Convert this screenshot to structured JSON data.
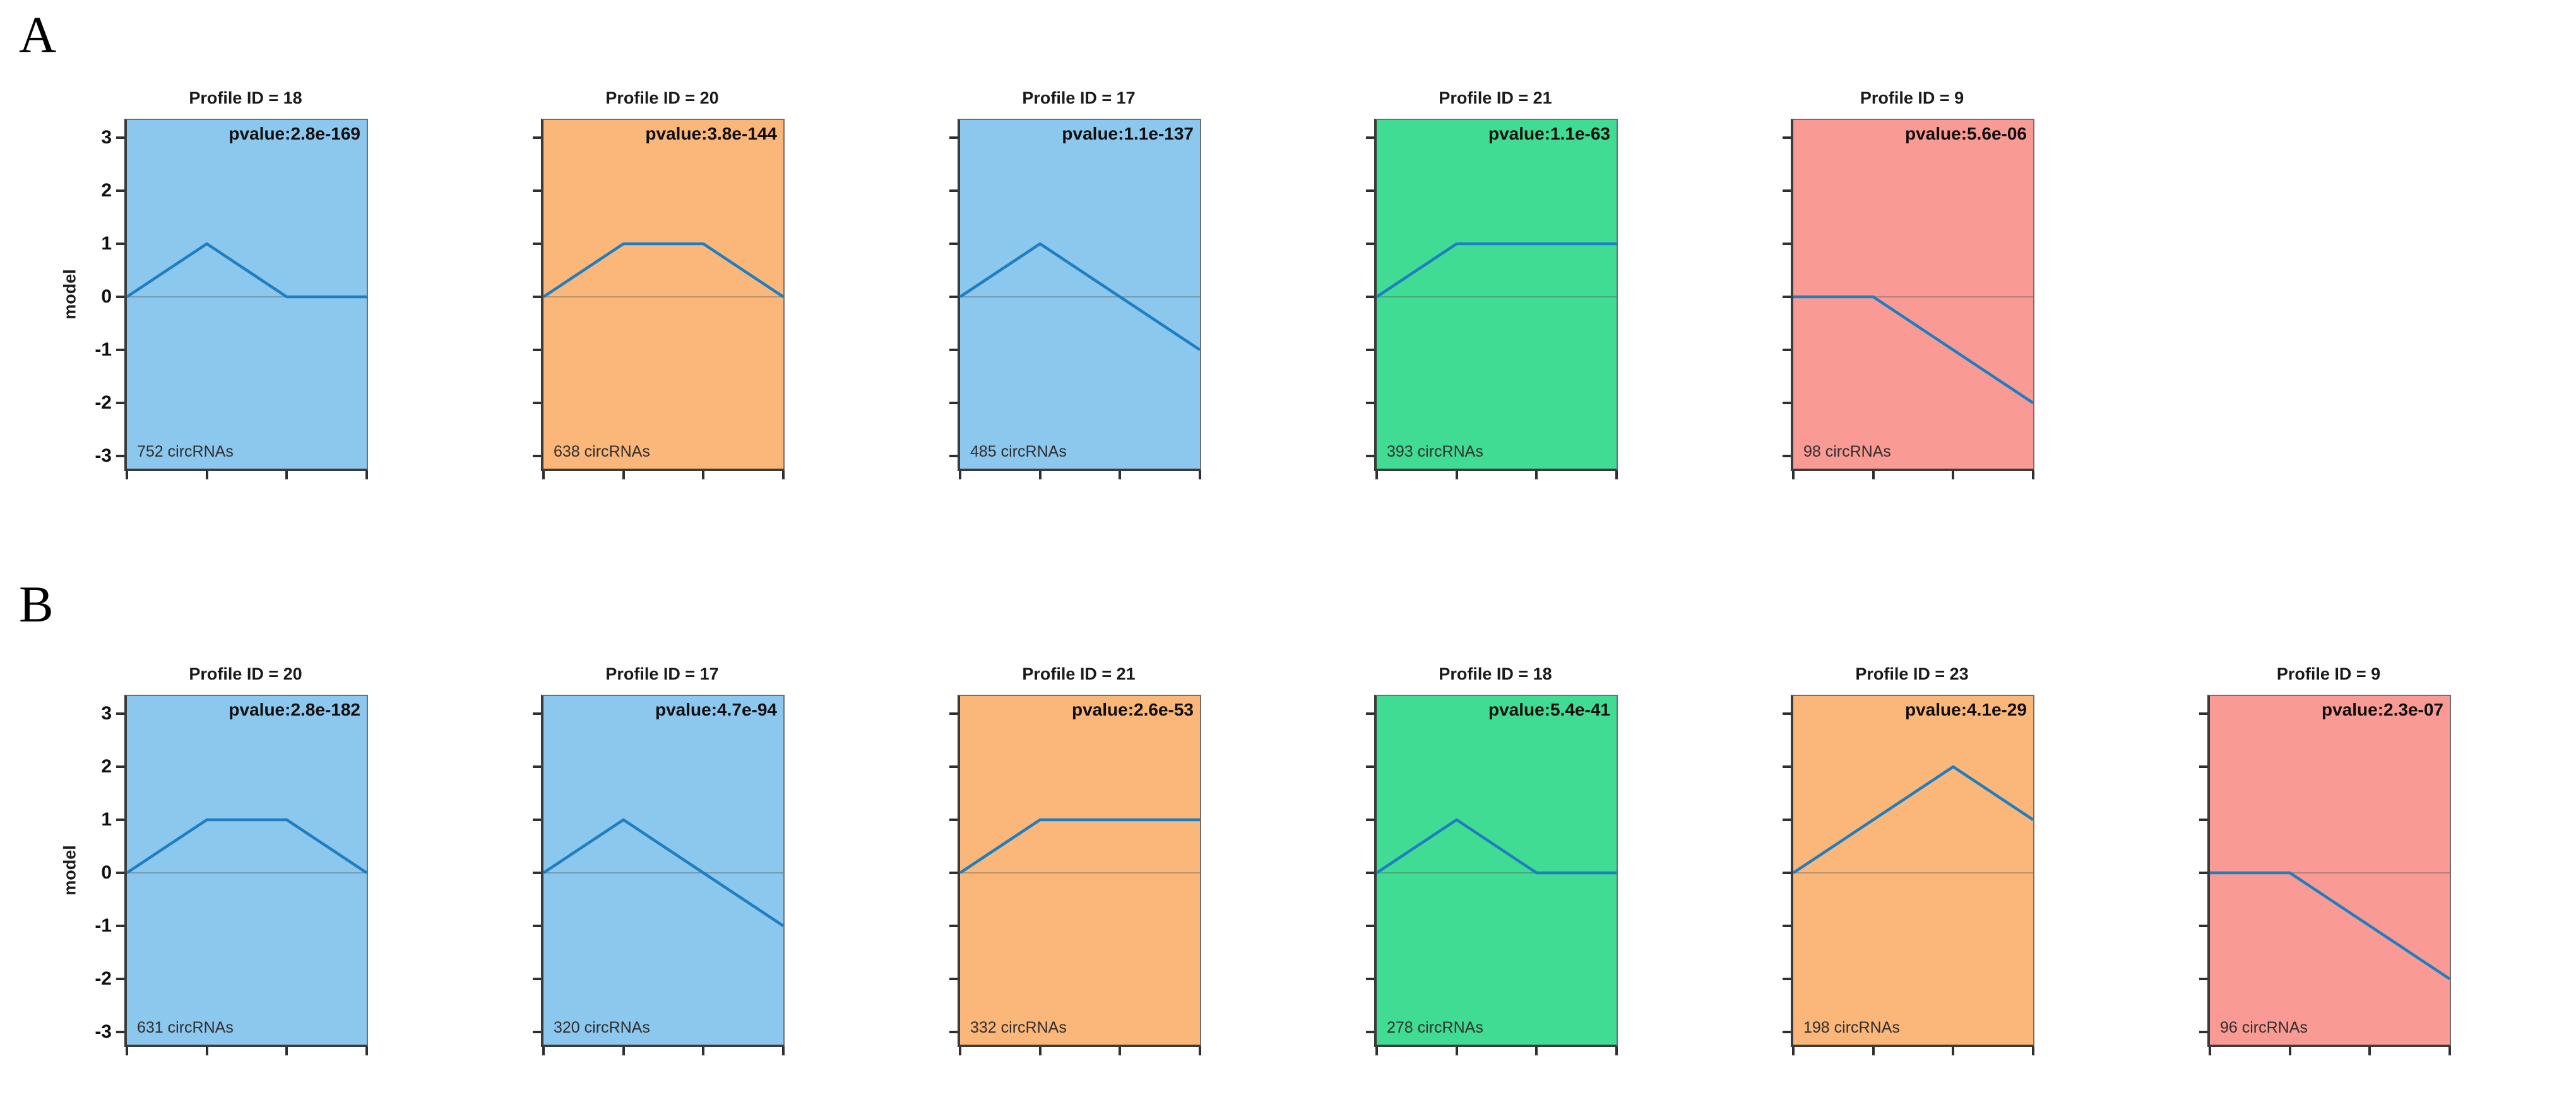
{
  "figure": {
    "label_a": "A",
    "label_b": "B"
  },
  "chart_data": {
    "type": "line",
    "ylabel": "model",
    "ylim": [
      -3.3,
      3.3
    ],
    "y_tick_labels": [
      "3",
      "2",
      "1",
      "0",
      "-1",
      "-2",
      "-3"
    ],
    "y_tick_values": [
      3,
      2,
      1,
      0,
      -1,
      -2,
      -3
    ],
    "x_points": [
      0,
      1,
      2,
      3
    ],
    "x_tick_labels": [
      "",
      "",
      "",
      ""
    ],
    "grid": false,
    "legend": false,
    "line_color": "#1E7EC0",
    "zero_line": true,
    "panel_colors": {
      "blue": "#8CC7EE",
      "orange": "#FBB679",
      "green": "#40DC93",
      "red": "#FA9A94"
    },
    "rows": [
      {
        "row_label": "A",
        "panels": [
          {
            "title": "Profile ID = 18",
            "pvalue": "pvalue:2.8e-169",
            "count": "752 circRNAs",
            "bg": "blue",
            "values": [
              0,
              1,
              0,
              0
            ]
          },
          {
            "title": "Profile ID = 20",
            "pvalue": "pvalue:3.8e-144",
            "count": "638 circRNAs",
            "bg": "orange",
            "values": [
              0,
              1,
              1,
              0
            ]
          },
          {
            "title": "Profile ID = 17",
            "pvalue": "pvalue:1.1e-137",
            "count": "485 circRNAs",
            "bg": "blue",
            "values": [
              0,
              1,
              0,
              -1
            ]
          },
          {
            "title": "Profile ID = 21",
            "pvalue": "pvalue:1.1e-63",
            "count": "393 circRNAs",
            "bg": "green",
            "values": [
              0,
              1,
              1,
              1
            ]
          },
          {
            "title": "Profile ID = 9",
            "pvalue": "pvalue:5.6e-06",
            "count": "98 circRNAs",
            "bg": "red",
            "values": [
              0,
              0,
              -1,
              -2
            ]
          }
        ]
      },
      {
        "row_label": "B",
        "panels": [
          {
            "title": "Profile ID = 20",
            "pvalue": "pvalue:2.8e-182",
            "count": "631 circRNAs",
            "bg": "blue",
            "values": [
              0,
              1,
              1,
              0
            ]
          },
          {
            "title": "Profile ID = 17",
            "pvalue": "pvalue:4.7e-94",
            "count": "320 circRNAs",
            "bg": "blue",
            "values": [
              0,
              1,
              0,
              -1
            ]
          },
          {
            "title": "Profile ID = 21",
            "pvalue": "pvalue:2.6e-53",
            "count": "332 circRNAs",
            "bg": "orange",
            "values": [
              0,
              1,
              1,
              1
            ]
          },
          {
            "title": "Profile ID = 18",
            "pvalue": "pvalue:5.4e-41",
            "count": "278 circRNAs",
            "bg": "green",
            "values": [
              0,
              1,
              0,
              0
            ]
          },
          {
            "title": "Profile ID = 23",
            "pvalue": "pvalue:4.1e-29",
            "count": "198 circRNAs",
            "bg": "orange",
            "values": [
              0,
              1,
              2,
              1
            ]
          },
          {
            "title": "Profile ID = 9",
            "pvalue": "pvalue:2.3e-07",
            "count": "96 circRNAs",
            "bg": "red",
            "values": [
              0,
              0,
              -1,
              -2
            ]
          }
        ]
      }
    ]
  }
}
